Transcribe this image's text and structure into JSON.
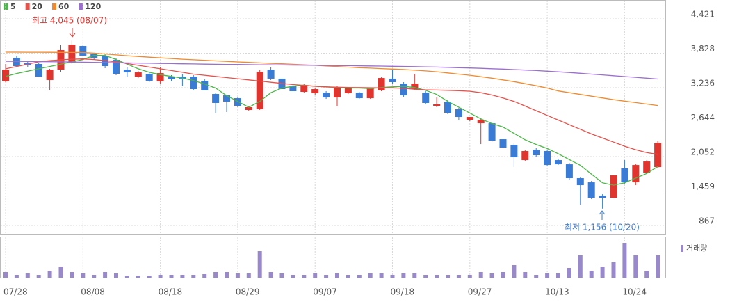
{
  "chart_data": {
    "type": "candlestick",
    "categories": [
      "07/28",
      null,
      null,
      null,
      null,
      null,
      null,
      "08/08",
      null,
      null,
      null,
      null,
      null,
      null,
      "08/18",
      null,
      null,
      null,
      null,
      null,
      null,
      "08/29",
      null,
      null,
      null,
      null,
      null,
      null,
      "09/07",
      null,
      null,
      null,
      null,
      null,
      null,
      "09/18",
      null,
      null,
      null,
      null,
      null,
      null,
      "09/27",
      null,
      null,
      null,
      null,
      null,
      null,
      "10/13",
      null,
      null,
      null,
      null,
      null,
      null,
      "10/24",
      null,
      null,
      null
    ],
    "open": [
      3344,
      3751,
      3667,
      3643,
      3368,
      3547,
      3667,
      3954,
      3811,
      3787,
      3715,
      3547,
      3427,
      3475,
      3344,
      3427,
      3427,
      3427,
      3356,
      3128,
      3104,
      3056,
      2853,
      2865,
      3547,
      3392,
      3272,
      3164,
      3140,
      3152,
      3068,
      3140,
      3152,
      3056,
      3188,
      3392,
      3308,
      3212,
      3152,
      2925,
      2997,
      2865,
      2685,
      2625,
      2625,
      2350,
      2254,
      1991,
      2171,
      2147,
      1991,
      1919,
      1680,
      1608,
      1380,
      1345,
      1848,
      1608,
      1776,
      1871
    ],
    "high": [
      3643,
      3787,
      3703,
      3667,
      3560,
      3966,
      4045,
      3966,
      3835,
      3811,
      3739,
      3583,
      3523,
      3499,
      3583,
      3451,
      3475,
      3451,
      3380,
      3140,
      3116,
      3068,
      2925,
      3547,
      3583,
      3403,
      3284,
      3296,
      3236,
      3176,
      3260,
      3224,
      3164,
      3236,
      3415,
      3547,
      3332,
      3475,
      3176,
      3068,
      3021,
      2889,
      2733,
      2709,
      2649,
      2374,
      2278,
      2171,
      2195,
      2171,
      2015,
      1943,
      1692,
      1632,
      1404,
      1728,
      1991,
      1931,
      1991,
      2314
    ],
    "low": [
      3330,
      3583,
      3583,
      3415,
      3188,
      3499,
      3643,
      3775,
      3715,
      3571,
      3451,
      3427,
      3403,
      3332,
      3308,
      3344,
      3260,
      3188,
      3188,
      2805,
      2817,
      2901,
      2841,
      2853,
      3368,
      3188,
      3176,
      3140,
      3116,
      3044,
      2913,
      3128,
      3044,
      3044,
      3176,
      3308,
      3080,
      3200,
      2949,
      2901,
      2781,
      2673,
      2661,
      2266,
      2302,
      2183,
      1871,
      1967,
      2051,
      1883,
      1907,
      1656,
      1225,
      1321,
      1156,
      1333,
      1584,
      1560,
      1752,
      1847
    ],
    "close": [
      3547,
      3607,
      3619,
      3427,
      3547,
      3882,
      3978,
      3787,
      3751,
      3607,
      3475,
      3499,
      3499,
      3356,
      3487,
      3380,
      3380,
      3212,
      3188,
      2973,
      2997,
      2925,
      2901,
      3511,
      3392,
      3212,
      3176,
      3272,
      3212,
      3068,
      3236,
      3224,
      3056,
      3224,
      3403,
      3332,
      3104,
      3308,
      2973,
      2949,
      2805,
      2733,
      2733,
      2685,
      2326,
      2207,
      2039,
      2147,
      2075,
      1907,
      1919,
      1680,
      1560,
      1345,
      1345,
      1728,
      1608,
      1907,
      1967,
      2290
    ],
    "up_color": "#e0342f",
    "down_color": "#3a7bd5",
    "series": [
      {
        "name": "5",
        "color": "#4cb648",
        "values": [
          3430,
          3480,
          3520,
          3560,
          3600,
          3640,
          3680,
          3720,
          3790,
          3790,
          3720,
          3640,
          3560,
          3500,
          3460,
          3430,
          3400,
          3360,
          3300,
          3230,
          3100,
          3000,
          2900,
          3000,
          3150,
          3230,
          3260,
          3280,
          3260,
          3250,
          3240,
          3230,
          3230,
          3220,
          3240,
          3250,
          3260,
          3240,
          3190,
          3120,
          3000,
          2900,
          2800,
          2700,
          2620,
          2560,
          2450,
          2340,
          2260,
          2190,
          2100,
          2000,
          1900,
          1750,
          1600,
          1560,
          1600,
          1680,
          1760,
          1880
        ]
      },
      {
        "name": "20",
        "color": "#e8504a",
        "values": [
          3560,
          3600,
          3640,
          3680,
          3700,
          3715,
          3725,
          3730,
          3720,
          3700,
          3680,
          3650,
          3620,
          3590,
          3560,
          3530,
          3500,
          3470,
          3450,
          3430,
          3410,
          3390,
          3370,
          3350,
          3330,
          3310,
          3290,
          3275,
          3260,
          3250,
          3245,
          3240,
          3238,
          3236,
          3234,
          3232,
          3225,
          3210,
          3200,
          3195,
          3190,
          3185,
          3175,
          3150,
          3110,
          3060,
          3000,
          2920,
          2840,
          2760,
          2680,
          2600,
          2520,
          2440,
          2370,
          2300,
          2230,
          2170,
          2120,
          2090
        ]
      },
      {
        "name": "60",
        "color": "#f08a2c",
        "values": [
          3846,
          3846,
          3845,
          3845,
          3844,
          3843,
          3842,
          3840,
          3830,
          3815,
          3800,
          3785,
          3772,
          3760,
          3748,
          3737,
          3726,
          3716,
          3706,
          3697,
          3688,
          3679,
          3670,
          3662,
          3654,
          3646,
          3638,
          3630,
          3620,
          3610,
          3600,
          3590,
          3580,
          3572,
          3564,
          3556,
          3548,
          3536,
          3524,
          3510,
          3490,
          3470,
          3450,
          3425,
          3400,
          3370,
          3340,
          3305,
          3270,
          3230,
          3180,
          3150,
          3120,
          3090,
          3060,
          3030,
          3005,
          2980,
          2955,
          2930
        ]
      },
      {
        "name": "120",
        "color": "#9b6fd0",
        "values": [
          3690,
          3688,
          3686,
          3684,
          3682,
          3680,
          3677,
          3674,
          3671,
          3668,
          3665,
          3662,
          3659,
          3656,
          3653,
          3650,
          3647,
          3644,
          3641,
          3638,
          3636,
          3634,
          3632,
          3630,
          3628,
          3626,
          3624,
          3622,
          3620,
          3618,
          3616,
          3614,
          3612,
          3610,
          3607,
          3604,
          3601,
          3598,
          3594,
          3590,
          3585,
          3580,
          3575,
          3569,
          3562,
          3555,
          3547,
          3539,
          3530,
          3520,
          3509,
          3497,
          3484,
          3470,
          3456,
          3442,
          3428,
          3414,
          3400,
          3386
        ]
      }
    ],
    "ylim": [
      723,
      4708
    ],
    "yticks": [
      {
        "value": 4421,
        "label": "4,421"
      },
      {
        "value": 3828,
        "label": "3,828"
      },
      {
        "value": 3236,
        "label": "3,236"
      },
      {
        "value": 2644,
        "label": "2,644"
      },
      {
        "value": 2052,
        "label": "2,052"
      },
      {
        "value": 1459,
        "label": "1,459"
      },
      {
        "value": 867,
        "label": "867"
      }
    ],
    "volume": {
      "name": "거래량",
      "color": "#9a88cc",
      "ylim": [
        0,
        58
      ],
      "values": [
        8,
        4,
        6,
        4,
        10,
        16,
        8,
        6,
        4,
        8,
        6,
        3,
        3,
        3,
        4,
        4,
        4,
        4,
        5,
        8,
        8,
        6,
        6,
        38,
        8,
        6,
        4,
        4,
        6,
        4,
        6,
        4,
        4,
        6,
        6,
        4,
        6,
        6,
        4,
        4,
        4,
        4,
        4,
        8,
        6,
        8,
        18,
        8,
        4,
        6,
        6,
        14,
        32,
        10,
        16,
        22,
        50,
        32,
        10,
        32
      ]
    },
    "annotations": [
      "최고 4,045 (08/07)",
      "최저 1,156 (10/20)"
    ],
    "grid": true
  }
}
